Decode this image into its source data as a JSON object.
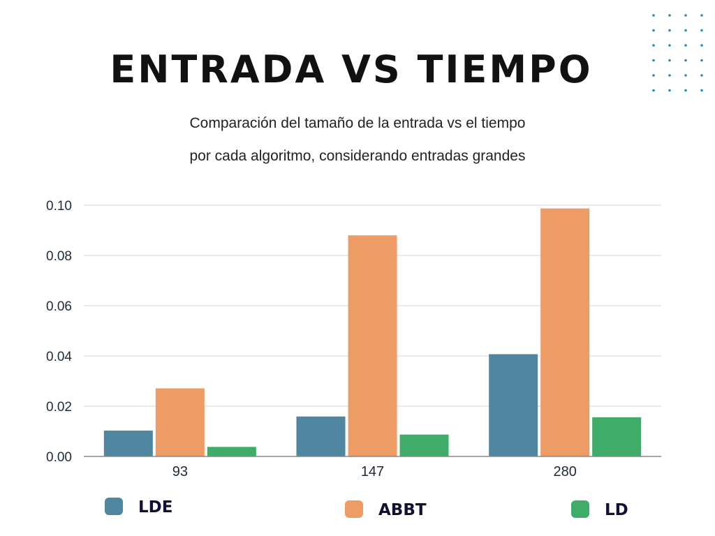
{
  "header": {
    "title": "ENTRADA VS TIEMPO",
    "subtitle_line1": "Comparación del tamaño de la entrada vs el tiempo",
    "subtitle_line2": "por cada algoritmo, considerando entradas grandes"
  },
  "decoration": {
    "dot_color": "#2a8fa8"
  },
  "chart_data": {
    "type": "bar",
    "title": "ENTRADA VS TIEMPO",
    "categories": [
      "93",
      "147",
      "280"
    ],
    "series": [
      {
        "name": "LDE",
        "color": "#4f86a0",
        "values": [
          0.0103,
          0.0159,
          0.0407
        ]
      },
      {
        "name": "ABBT",
        "color": "#ed9c65",
        "values": [
          0.0271,
          0.088,
          0.0987
        ]
      },
      {
        "name": "LD",
        "color": "#3fac6a",
        "values": [
          0.0038,
          0.0087,
          0.0156
        ]
      }
    ],
    "yticks": [
      "0.00",
      "0.02",
      "0.04",
      "0.06",
      "0.08",
      "0.10"
    ],
    "ylim": [
      0,
      0.1
    ],
    "xlabel": "",
    "ylabel": "",
    "grid": true,
    "legend_position": "bottom"
  }
}
